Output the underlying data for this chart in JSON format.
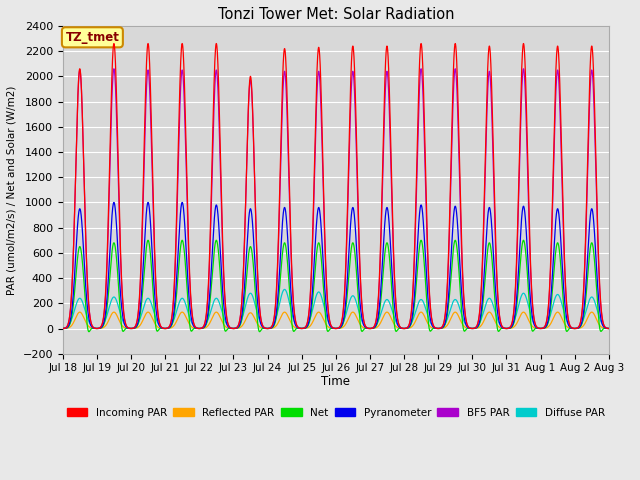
{
  "title": "Tonzi Tower Met: Solar Radiation",
  "ylabel": "PAR (umol/m2/s) / Net and Solar (W/m2)",
  "xlabel": "Time",
  "annotation_text": "TZ_tmet",
  "ylim": [
    -200,
    2400
  ],
  "yticks": [
    -200,
    0,
    200,
    400,
    600,
    800,
    1000,
    1200,
    1400,
    1600,
    1800,
    2000,
    2200,
    2400
  ],
  "num_days": 16,
  "series": {
    "incoming_par": {
      "color": "#FF0000",
      "label": "Incoming PAR"
    },
    "reflected_par": {
      "color": "#FFA500",
      "label": "Reflected PAR"
    },
    "net": {
      "color": "#00DD00",
      "label": "Net"
    },
    "pyranometer": {
      "color": "#0000EE",
      "label": "Pyranometer"
    },
    "bf5_par": {
      "color": "#AA00CC",
      "label": "BF5 PAR"
    },
    "diffuse_par": {
      "color": "#00CCCC",
      "label": "Diffuse PAR"
    }
  },
  "background_color": "#E8E8E8",
  "plot_bg_color": "#D8D8D8",
  "grid_color": "#FFFFFF",
  "annotation_bg": "#FFFF99",
  "annotation_border": "#CC8800",
  "annotation_text_color": "#880000",
  "legend_items": [
    {
      "label": "Incoming PAR",
      "color": "#FF0000"
    },
    {
      "label": "Reflected PAR",
      "color": "#FFA500"
    },
    {
      "label": "Net",
      "color": "#00DD00"
    },
    {
      "label": "Pyranometer",
      "color": "#0000EE"
    },
    {
      "label": "BF5 PAR",
      "color": "#AA00CC"
    },
    {
      "label": "Diffuse PAR",
      "color": "#00CCCC"
    }
  ]
}
